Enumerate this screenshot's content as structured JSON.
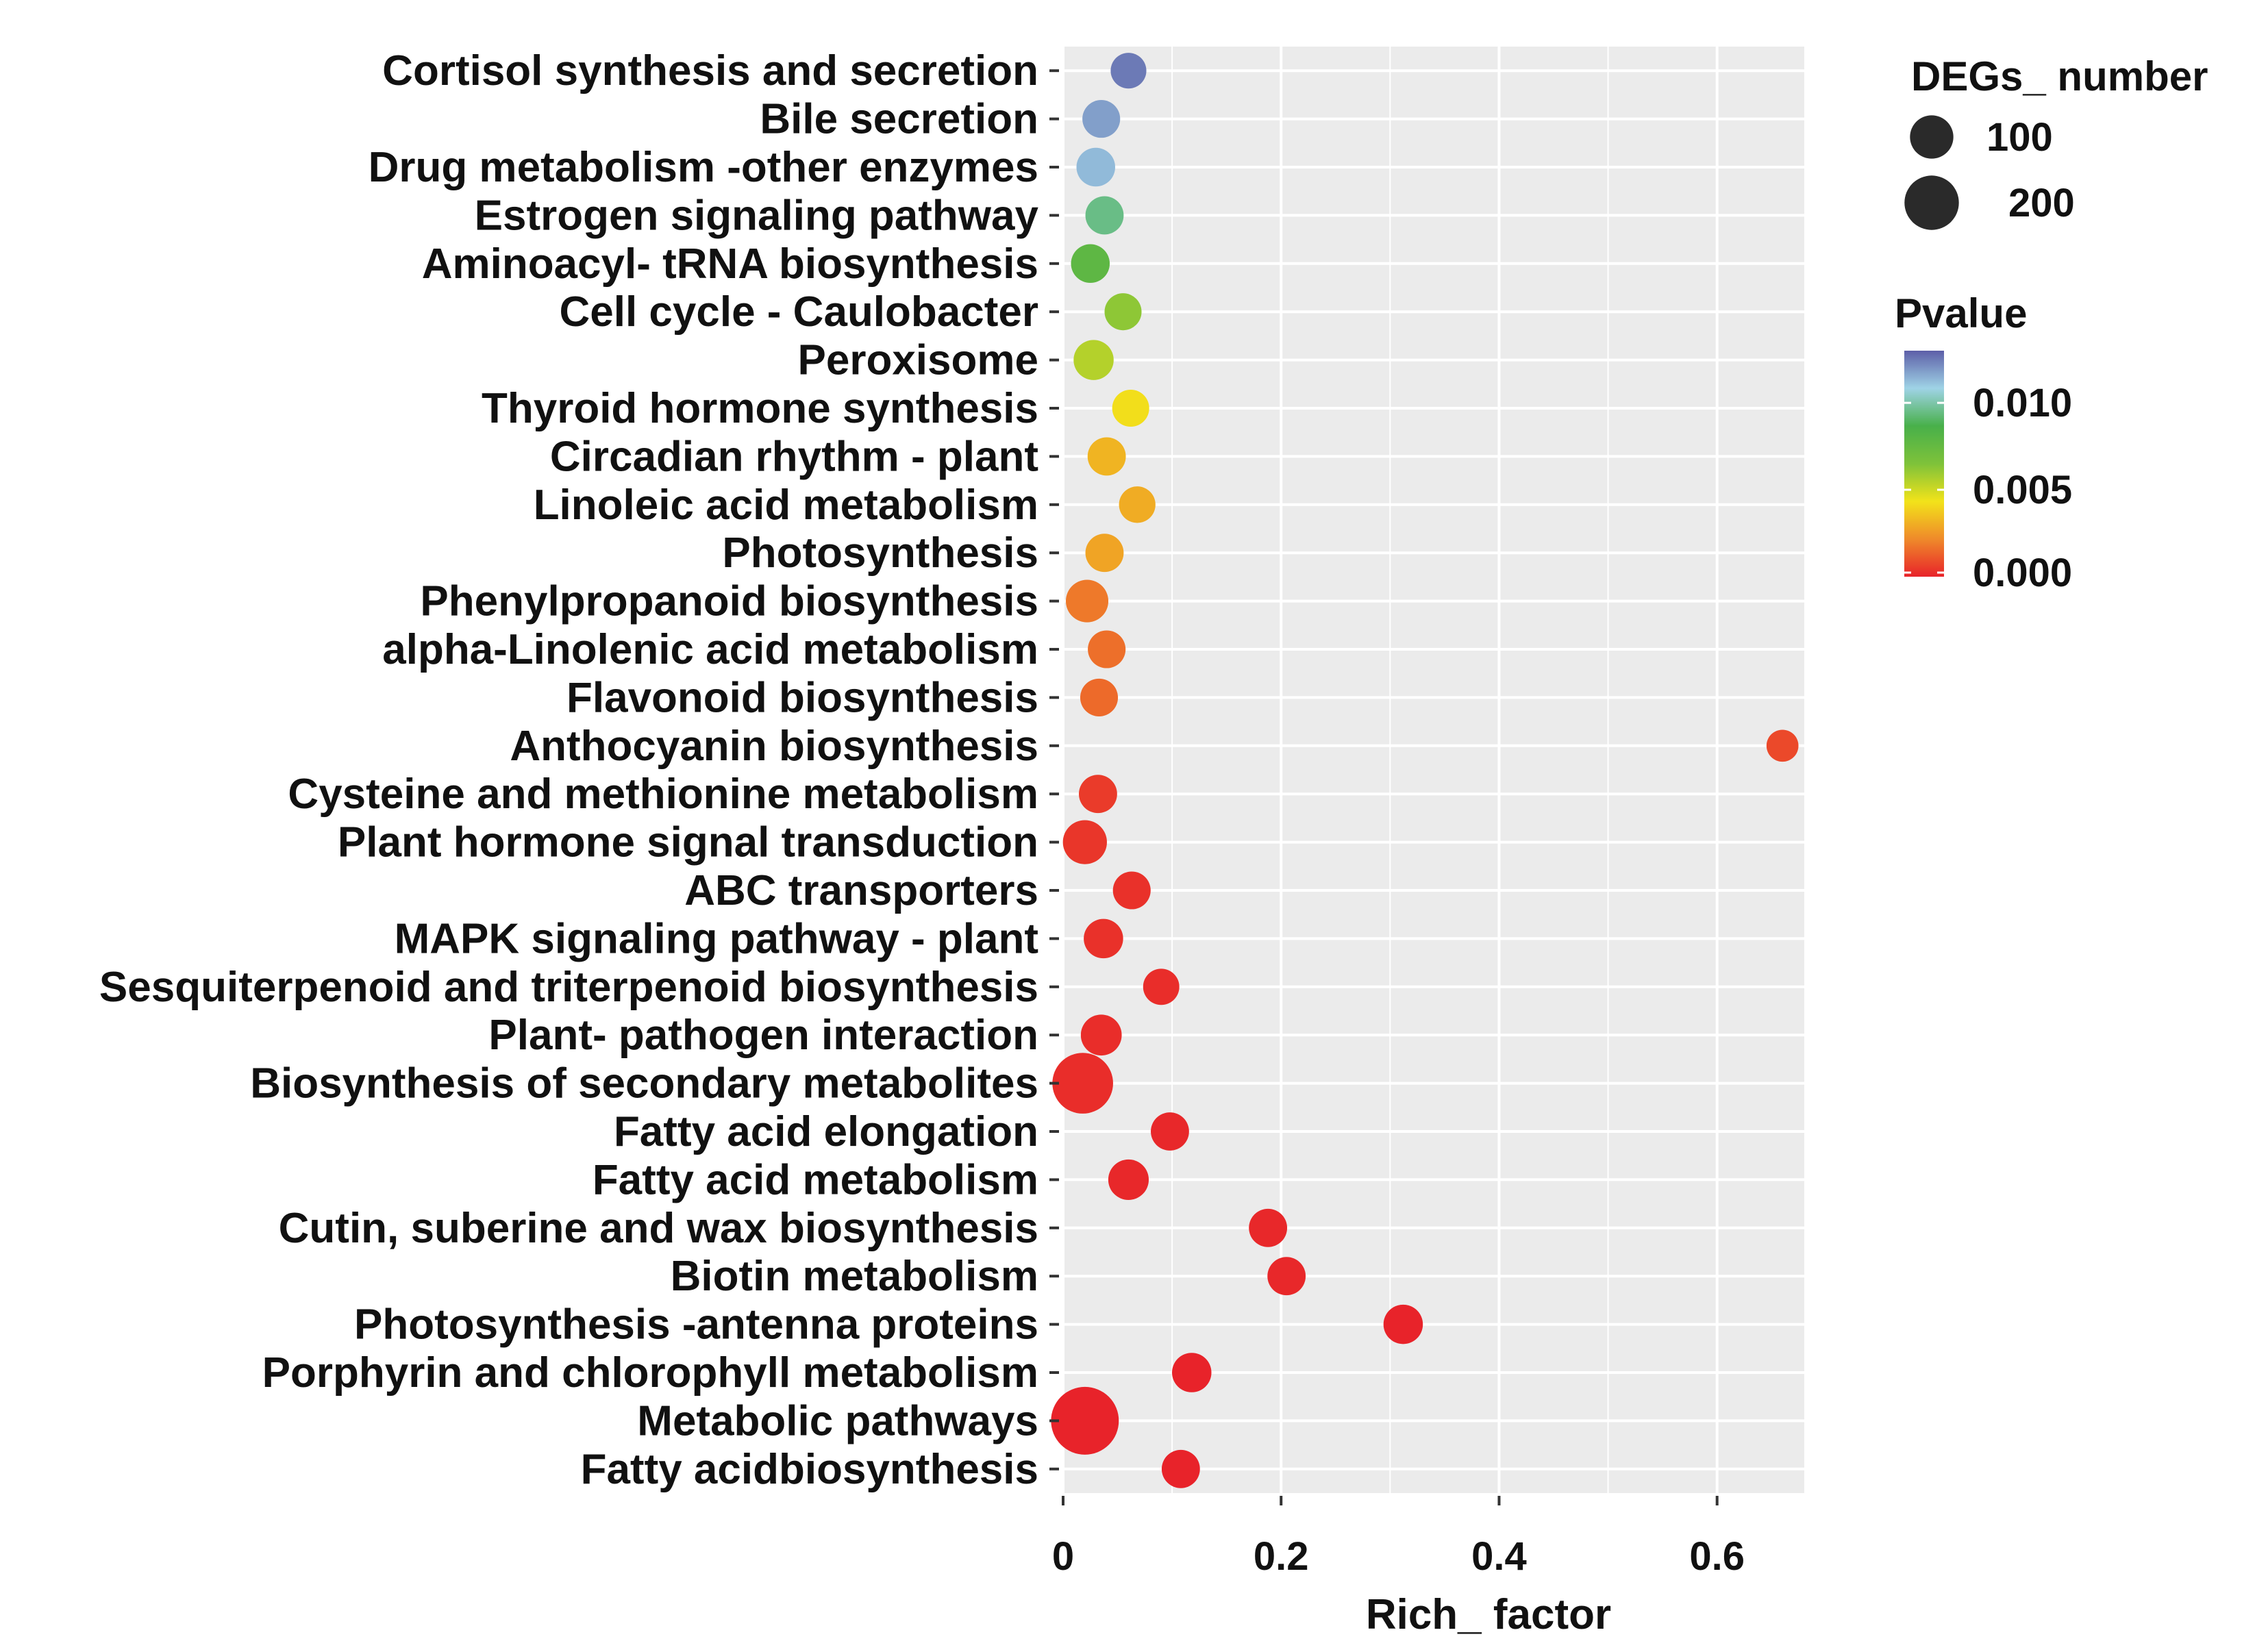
{
  "chart_data": {
    "type": "scatter",
    "title": "",
    "xlabel": "Rich_ factor",
    "ylabel": "",
    "xlim": [
      0,
      0.68
    ],
    "x_ticks": [
      0,
      0.2,
      0.4,
      0.6
    ],
    "x_tick_labels": [
      "0",
      "0.2",
      "0.4",
      "0.6"
    ],
    "grid": true,
    "highlight_color": "#e8232a",
    "categories": [
      "Cortisol synthesis and secretion",
      "Bile secretion",
      "Drug metabolism -other enzymes",
      "Estrogen signaling pathway",
      "Aminoacyl- tRNA biosynthesis",
      "Cell cycle - Caulobacter",
      "Peroxisome",
      "Thyroid hormone synthesis",
      "Circadian rhythm - plant",
      "Linoleic acid metabolism",
      "Photosynthesis",
      "Phenylpropanoid biosynthesis",
      "alpha-Linolenic acid metabolism",
      "Flavonoid biosynthesis",
      "Anthocyanin biosynthesis",
      "Cysteine and methionine metabolism",
      "Plant hormone signal transduction",
      "ABC transporters",
      "MAPK signaling pathway - plant",
      "Sesquiterpenoid and triterpenoid biosynthesis",
      "Plant- pathogen interaction",
      "Biosynthesis of secondary metabolites",
      "Fatty acid elongation",
      "Fatty acid metabolism",
      "Cutin, suberine and wax biosynthesis",
      "Biotin metabolism",
      "Photosynthesis -antenna proteins",
      "Porphyrin and chlorophyll metabolism",
      "Metabolic pathways",
      "Fatty acidbiosynthesis"
    ],
    "highlighted": [
      "Circadian rhythm - plant",
      "Plant hormone signal transduction"
    ],
    "rich_factor": [
      0.06,
      0.035,
      0.03,
      0.038,
      0.025,
      0.055,
      0.028,
      0.062,
      0.04,
      0.068,
      0.038,
      0.022,
      0.04,
      0.033,
      0.66,
      0.032,
      0.02,
      0.063,
      0.037,
      0.09,
      0.035,
      0.018,
      0.098,
      0.06,
      0.188,
      0.205,
      0.312,
      0.118,
      0.02,
      0.108
    ],
    "pvalue": [
      0.0125,
      0.0118,
      0.0113,
      0.0095,
      0.0078,
      0.0062,
      0.0055,
      0.0042,
      0.0032,
      0.003,
      0.0028,
      0.0018,
      0.0016,
      0.0015,
      0.0008,
      0.0005,
      0.0004,
      0.0003,
      0.0003,
      0.0002,
      0.0002,
      0.0002,
      0.0001,
      0.0001,
      0.0001,
      0.0001,
      0.0,
      0.0,
      0.0,
      0.0
    ],
    "degs_number": [
      30,
      38,
      42,
      40,
      42,
      35,
      48,
      35,
      40,
      33,
      40,
      60,
      38,
      38,
      18,
      40,
      68,
      38,
      45,
      32,
      52,
      190,
      40,
      50,
      40,
      40,
      45,
      45,
      260,
      40
    ],
    "legend_size": {
      "title": "DEGs_ number",
      "values": [
        100,
        200
      ],
      "labels": [
        "100",
        "200"
      ]
    },
    "legend_color": {
      "title": "Pvalue",
      "ticks": [
        0.01,
        0.005,
        0.0
      ],
      "tick_labels": [
        "0.010",
        "0.005",
        "0.000"
      ],
      "range": [
        0.0,
        0.013
      ],
      "colors": [
        "#e8232a",
        "#ef8a2a",
        "#f2e31a",
        "#7ec23a",
        "#48b04a",
        "#9fd3e6",
        "#5d5fa8"
      ]
    },
    "dot_color": "#2a2a2a"
  }
}
